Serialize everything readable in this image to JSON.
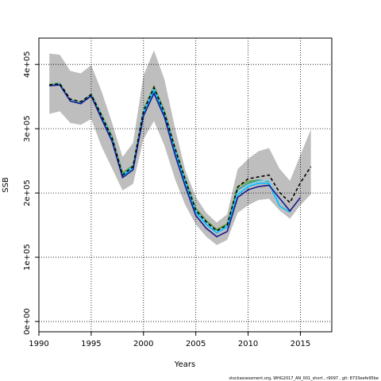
{
  "chart_data": {
    "type": "line",
    "y_label": "SSB",
    "x_label": "Years",
    "footnote": "stockassessment.org, WHG2017_AN_001_short , r9097 , git: 8733eefe95be",
    "x": [
      1991,
      1992,
      1993,
      1994,
      1995,
      1996,
      1997,
      1998,
      1999,
      2000,
      2001,
      2002,
      2003,
      2004,
      2005,
      2006,
      2007,
      2008,
      2009,
      2010,
      2011,
      2012,
      2013,
      2014,
      2015,
      2016
    ],
    "band": {
      "color": "#bebebe",
      "upper": [
        417000,
        415000,
        390000,
        386000,
        399000,
        358000,
        309000,
        256000,
        278000,
        383000,
        422000,
        377000,
        302000,
        235000,
        194000,
        169000,
        154000,
        167000,
        237000,
        253000,
        265000,
        270000,
        238000,
        219000,
        259000,
        299000
      ],
      "lower": [
        323000,
        327000,
        309000,
        306000,
        315000,
        272000,
        238000,
        204000,
        214000,
        284000,
        312000,
        274000,
        222000,
        181000,
        151000,
        132000,
        119000,
        127000,
        169000,
        181000,
        189000,
        191000,
        173000,
        160000,
        181000,
        198000
      ]
    },
    "series": [
      {
        "color": "#6b9e2a",
        "dash": false,
        "values": [
          369000,
          371000,
          345000,
          341000,
          354000,
          322000,
          288000,
          231000,
          243000,
          330000,
          366000,
          328000,
          272000,
          222000,
          176000,
          157000,
          143000,
          152000,
          210000,
          218000,
          220000,
          null,
          null,
          null,
          null,
          null
        ]
      },
      {
        "color": "#2aa198",
        "dash": false,
        "values": [
          368000,
          370000,
          344000,
          340000,
          353000,
          320000,
          286000,
          229000,
          242000,
          328000,
          364000,
          326000,
          270000,
          220000,
          174000,
          155000,
          141000,
          150000,
          205000,
          215000,
          220000,
          218000,
          null,
          null,
          null,
          null
        ]
      },
      {
        "color": "#87ceeb",
        "dash": false,
        "values": [
          368000,
          370000,
          344000,
          340000,
          353000,
          320000,
          285000,
          228000,
          241000,
          327000,
          363000,
          325000,
          269000,
          219000,
          173000,
          154000,
          140000,
          149000,
          200000,
          212000,
          218000,
          220000,
          185000,
          null,
          null,
          null
        ]
      },
      {
        "color": "#00bfff",
        "dash": false,
        "values": [
          367000,
          369000,
          343000,
          339000,
          352000,
          318000,
          283000,
          226000,
          239000,
          324000,
          360000,
          322000,
          266000,
          216000,
          170000,
          151000,
          138000,
          147000,
          197000,
          210000,
          215000,
          215000,
          180000,
          170000,
          null,
          null
        ]
      },
      {
        "color": "#1a1a8c",
        "dash": false,
        "values": [
          367000,
          368000,
          343000,
          339000,
          351000,
          315000,
          280000,
          224000,
          236000,
          320000,
          355000,
          318000,
          260000,
          210000,
          165000,
          145000,
          132000,
          140000,
          193000,
          205000,
          210000,
          212000,
          192000,
          172000,
          193000,
          null
        ]
      },
      {
        "color": "#000000",
        "dash": true,
        "values": [
          368000,
          370000,
          346000,
          342000,
          353000,
          320000,
          285000,
          228000,
          241000,
          327000,
          364000,
          325000,
          270000,
          220000,
          173000,
          155000,
          141000,
          150000,
          209000,
          222000,
          225000,
          228000,
          201000,
          185000,
          216000,
          241000
        ]
      }
    ],
    "xlim": [
      1990,
      2018
    ],
    "ylim": [
      -16000,
      441000
    ],
    "xticks": [
      1990,
      1995,
      2000,
      2005,
      2010,
      2015
    ],
    "yticks": [
      {
        "value": 0,
        "label": "0e+00"
      },
      {
        "value": 100000,
        "label": "1e+05"
      },
      {
        "value": 200000,
        "label": "2e+05"
      },
      {
        "value": 300000,
        "label": "3e+05"
      },
      {
        "value": 400000,
        "label": "4e+05"
      }
    ],
    "grid": true
  }
}
